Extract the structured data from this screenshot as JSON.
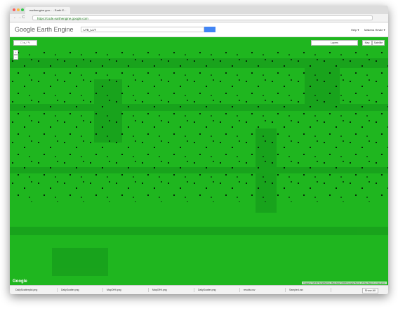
{
  "browser": {
    "tab_title": "earthengine.goo... - Earth E...",
    "url": "https://code.earthengine.google.com"
  },
  "header": {
    "logo": "Google Earth Engine",
    "search": "LT5_L1T",
    "help": "Help ▾",
    "user": "Makena Hewle ▾"
  },
  "map": {
    "layers": "Layers",
    "map_types": [
      "Map",
      "Satellite"
    ],
    "zoom": [
      "+",
      "−"
    ],
    "logo": "Google",
    "attribution": "Imagery ©2016 TerraMetrics, Map data ©2016 Google  Terms of Use  Report a map error"
  },
  "downloads": {
    "items": [
      "DailyScatterplot.png",
      "DailyScatter.png",
      "MapOfHi.png",
      "MapOfHi.png",
      "DailyScatter.png",
      "results.csv",
      "Sampled.csv"
    ],
    "show_all": "Show All"
  }
}
